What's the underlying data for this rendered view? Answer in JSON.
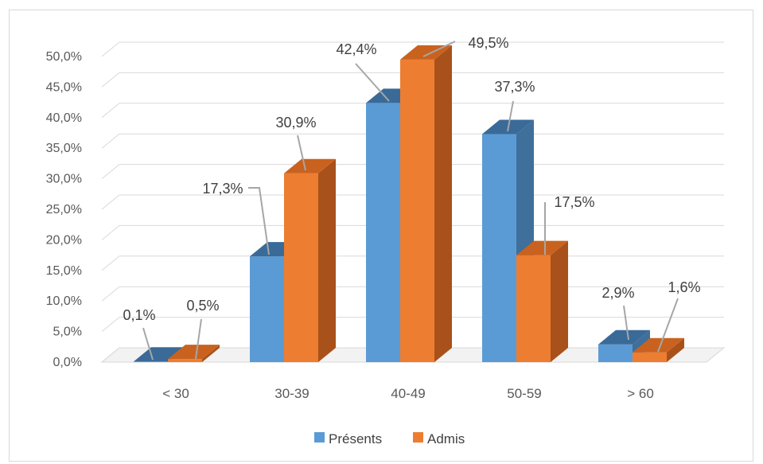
{
  "chart_data": {
    "type": "bar",
    "categories": [
      "< 30",
      "30-39",
      "40-49",
      "50-59",
      "> 60"
    ],
    "series": [
      {
        "name": "Présents",
        "values": [
          0.1,
          17.3,
          42.4,
          37.3,
          2.9
        ],
        "labels": [
          "0,1%",
          "17,3%",
          "42,4%",
          "37,3%",
          "2,9%"
        ],
        "color": "#5b9bd5",
        "side_color": "#3f6f9b",
        "top_color": "#3a6a98"
      },
      {
        "name": "Admis",
        "values": [
          0.5,
          30.9,
          49.5,
          17.5,
          1.6
        ],
        "labels": [
          "0,5%",
          "30,9%",
          "49,5%",
          "17,5%",
          "1,6%"
        ],
        "color": "#ed7d31",
        "side_color": "#a9511a",
        "top_color": "#c9621f"
      }
    ],
    "y_ticks": [
      "0,0%",
      "5,0%",
      "10,0%",
      "15,0%",
      "20,0%",
      "25,0%",
      "30,0%",
      "35,0%",
      "40,0%",
      "45,0%",
      "50,0%"
    ],
    "ylim": [
      0,
      50
    ],
    "y_step": 5,
    "grid": true,
    "legend_position": "bottom",
    "title": "",
    "xlabel": "",
    "ylabel": ""
  }
}
